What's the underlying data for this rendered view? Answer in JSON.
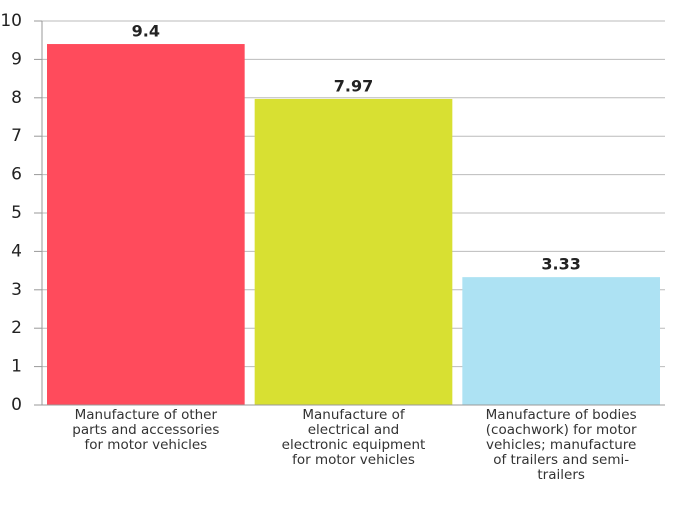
{
  "chart_data": {
    "type": "bar",
    "categories": [
      "Manufacture of other parts and accessories for motor vehicles",
      "Manufacture of electrical and electronic equipment for motor vehicles",
      "Manufacture of bodies (coachwork) for motor vehicles; manufacture of trailers and semi-trailers"
    ],
    "values": [
      9.4,
      7.97,
      3.33
    ],
    "colors": [
      "#ff4b5c",
      "#d8e032",
      "#ade2f3"
    ],
    "ylim": [
      0,
      10
    ],
    "yticks": [
      0,
      1,
      2,
      3,
      4,
      5,
      6,
      7,
      8,
      9,
      10
    ],
    "grid": true
  }
}
